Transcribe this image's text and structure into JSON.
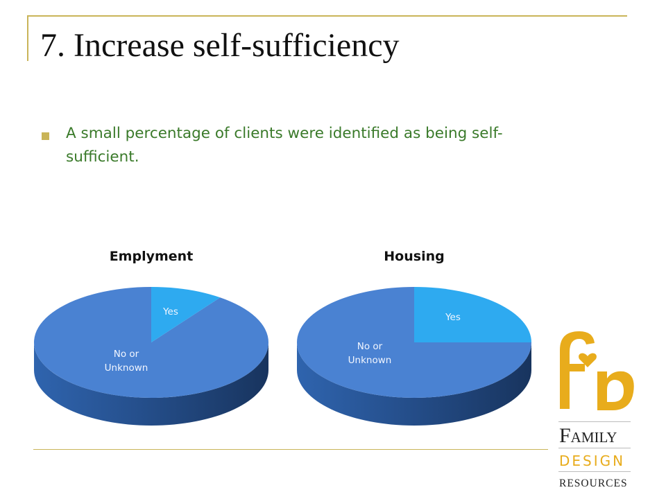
{
  "slide": {
    "title": "7. Increase self-sufficiency",
    "bullets": [
      "A small percentage of clients were identified as being self-sufficient."
    ]
  },
  "colors": {
    "accent_gold": "#c9b458",
    "bullet_text": "#3a7a2a",
    "slice_no": "#4a82d2",
    "slice_yes": "#2eaaf0",
    "logo_gold": "#e8ac1c"
  },
  "chart_data": [
    {
      "type": "pie",
      "title": "Emplyment",
      "labels": [
        "Yes",
        "No or Unknown"
      ],
      "values": [
        10,
        90
      ],
      "label_lines": [
        [
          "Yes"
        ],
        [
          "No or",
          "Unknown"
        ]
      ]
    },
    {
      "type": "pie",
      "title": "Housing",
      "labels": [
        "Yes",
        "No or Unknown"
      ],
      "values": [
        25,
        75
      ],
      "label_lines": [
        [
          "Yes"
        ],
        [
          "No or",
          "Unknown"
        ]
      ]
    }
  ],
  "logo": {
    "brand_word_1": "Family",
    "brand_word_2": "DESIGN",
    "brand_word_3": "RESOURCES"
  }
}
